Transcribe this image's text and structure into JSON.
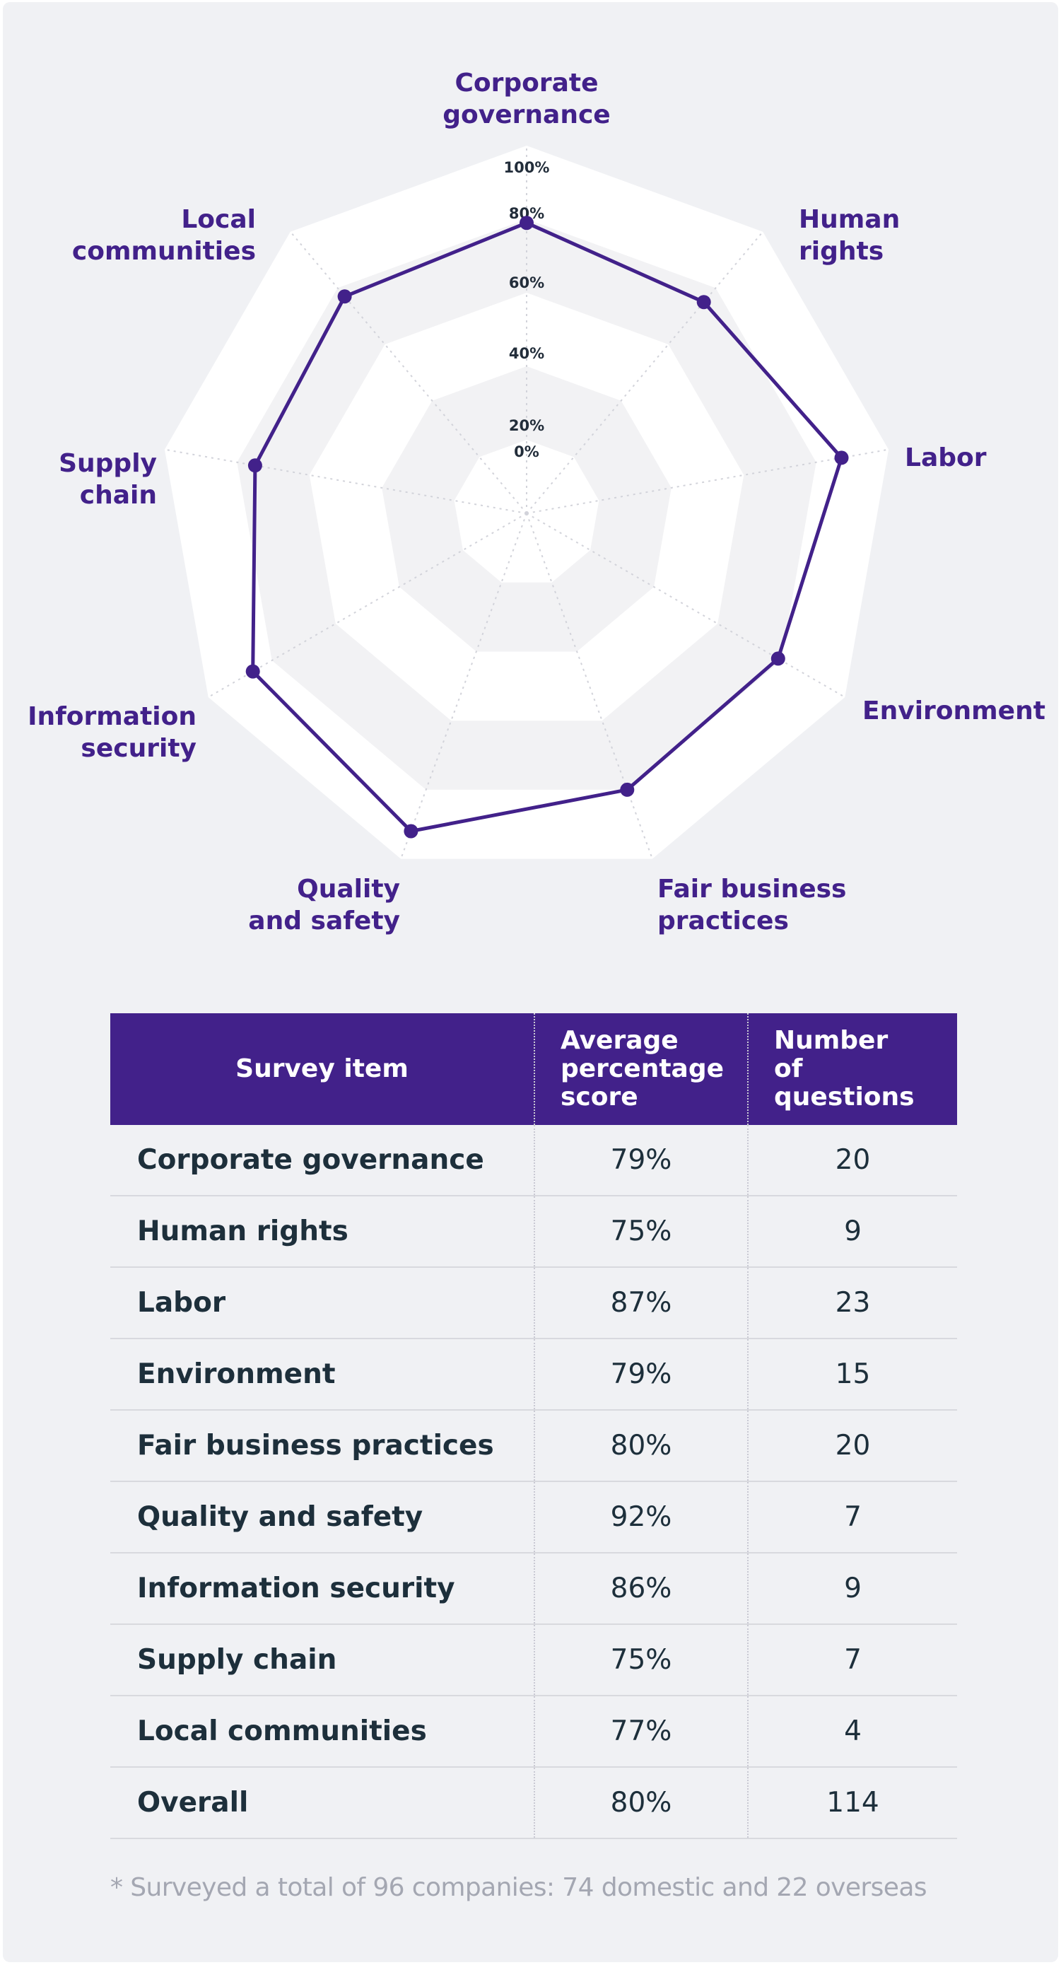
{
  "chart_data": [
    {
      "type": "radar",
      "axes": [
        "Corporate governance",
        "Human rights",
        "Labor",
        "Environment",
        "Fair business practices",
        "Quality and safety",
        "Information security",
        "Supply chain",
        "Local communities"
      ],
      "axis_labels": [
        "Corporate\ngovernance",
        "Human\nrights",
        "Labor",
        "Environment",
        "Fair business\npractices",
        "Quality\nand safety",
        "Information\nsecurity",
        "Supply\nchain",
        "Local\ncommunities"
      ],
      "series": [
        {
          "name": "Average percentage score",
          "values": [
            79,
            75,
            87,
            79,
            80,
            92,
            86,
            75,
            77
          ]
        }
      ],
      "rlim": [
        0,
        100
      ],
      "ticks": [
        0,
        20,
        40,
        60,
        80,
        100
      ],
      "tick_labels": [
        "0%",
        "20%",
        "40%",
        "60%",
        "80%",
        "100%"
      ],
      "colors": {
        "series": "#42218a",
        "band_dark": "#f2f2f4",
        "band_light": "#ffffff"
      }
    },
    {
      "type": "table",
      "columns": [
        "Survey item",
        "Average percentage score",
        "Number of questions"
      ],
      "column_labels": [
        "Survey item",
        "Average\npercentage\nscore",
        "Number\nof\nquestions"
      ],
      "rows": [
        [
          "Corporate governance",
          "79%",
          "20"
        ],
        [
          "Human rights",
          "75%",
          "9"
        ],
        [
          "Labor",
          "87%",
          "23"
        ],
        [
          "Environment",
          "79%",
          "15"
        ],
        [
          "Fair business practices",
          "80%",
          "20"
        ],
        [
          "Quality and safety",
          "92%",
          "7"
        ],
        [
          "Information security",
          "86%",
          "9"
        ],
        [
          "Supply chain",
          "75%",
          "7"
        ],
        [
          "Local communities",
          "77%",
          "4"
        ],
        [
          "Overall",
          "80%",
          "114"
        ]
      ]
    }
  ],
  "footnote": "* Surveyed a total of 96 companies: 74 domestic and 22 overseas"
}
